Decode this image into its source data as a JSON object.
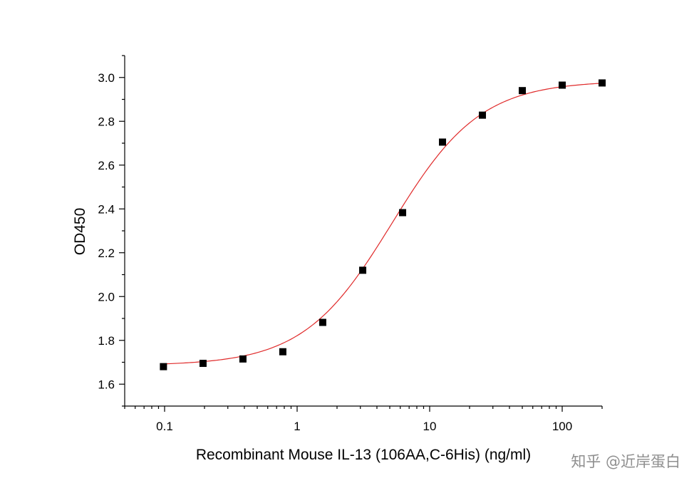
{
  "chart_data": {
    "type": "scatter",
    "title": "",
    "xlabel": "Recombinant Mouse IL-13 (106AA,C-6His) (ng/ml)",
    "ylabel": "OD450",
    "x_scale": "log",
    "xlim": [
      0.05,
      200
    ],
    "ylim": [
      1.5,
      3.1
    ],
    "x_ticks": [
      0.1,
      1,
      10,
      100
    ],
    "x_tick_labels": [
      "0.1",
      "1",
      "10",
      "100"
    ],
    "y_ticks": [
      1.6,
      1.8,
      2.0,
      2.2,
      2.4,
      2.6,
      2.8,
      3.0
    ],
    "y_tick_labels": [
      "1.6",
      "1.8",
      "2.0",
      "2.2",
      "2.4",
      "2.6",
      "2.8",
      "3.0"
    ],
    "grid": false,
    "legend": "none",
    "series": [
      {
        "type": "scatter",
        "marker": "square",
        "color": "#000000",
        "x": [
          0.098,
          0.195,
          0.39,
          0.78,
          1.56,
          3.125,
          6.25,
          12.5,
          25,
          50,
          100,
          200
        ],
        "y": [
          1.68,
          1.695,
          1.715,
          1.748,
          1.882,
          2.12,
          2.383,
          2.705,
          2.828,
          2.94,
          2.965,
          2.975
        ]
      },
      {
        "type": "line",
        "fit": "four-parameter logistic",
        "color": "#e02a2a",
        "params": {
          "bottom": 1.685,
          "top": 2.985,
          "ec50": 5.2,
          "hill": 1.3
        }
      }
    ]
  },
  "watermark": {
    "text": "知乎 @近岸蛋白"
  }
}
